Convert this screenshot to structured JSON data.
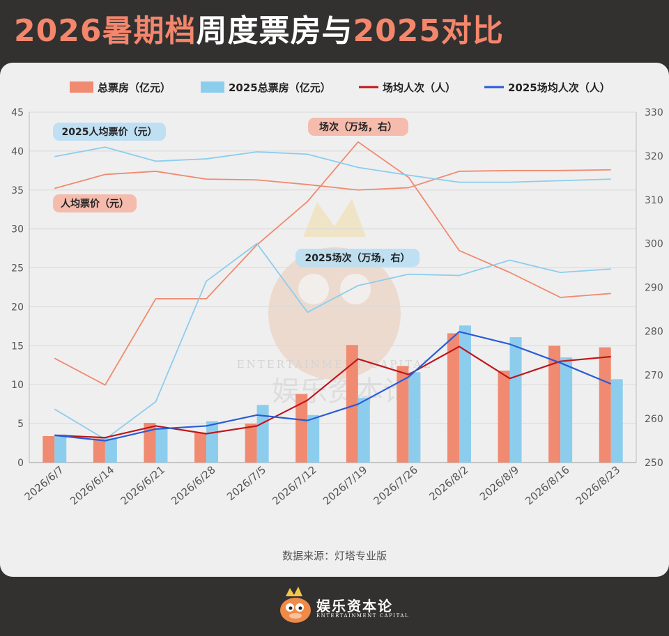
{
  "header": {
    "title_part1": "2026暑期档",
    "title_part2": "周度票房与",
    "title_part3": "2025对比"
  },
  "colors": {
    "bar_2026": "#f08a70",
    "bar_2025": "#8ccdee",
    "line_2026_attendance": "#c0161b",
    "line_2025_attendance": "#2a5bd7",
    "line_2026_price": "#f08a70",
    "line_2025_price": "#8ccdee",
    "annot_red_bg": "#f5b5a4",
    "annot_blue_bg": "#b9def2"
  },
  "chart_data": {
    "type": "bar",
    "categories": [
      "2026/6/7",
      "2026/6/14",
      "2026/6/21",
      "2026/6/28",
      "2026/7/5",
      "2026/7/12",
      "2026/7/19",
      "2026/7/26",
      "2026/8/2",
      "2026/8/9",
      "2026/8/16",
      "2026/8/23"
    ],
    "left_axis": {
      "min": 0,
      "max": 45,
      "ticks": [
        0,
        5,
        10,
        15,
        20,
        25,
        30,
        35,
        40,
        45
      ]
    },
    "right_axis": {
      "min": 250,
      "max": 330,
      "ticks": [
        250,
        260,
        270,
        280,
        290,
        300,
        310,
        320,
        330
      ]
    },
    "series": [
      {
        "name": "总票房（亿元）",
        "kind": "bar",
        "axis": "left",
        "values": [
          3.4,
          3.1,
          5.1,
          3.8,
          5.0,
          8.8,
          15.1,
          12.4,
          16.6,
          11.8,
          15.0,
          14.8
        ]
      },
      {
        "name": "2025总票房（亿元）",
        "kind": "bar",
        "axis": "left",
        "values": [
          3.6,
          3.1,
          4.5,
          5.3,
          7.4,
          6.1,
          8.3,
          11.6,
          17.6,
          16.1,
          13.5,
          10.7
        ]
      },
      {
        "name": "场均人次（人）",
        "kind": "line",
        "axis": "left",
        "values": [
          3.5,
          3.2,
          4.7,
          3.7,
          4.7,
          8.0,
          13.3,
          11.3,
          14.9,
          10.8,
          13.0,
          13.6
        ]
      },
      {
        "name": "2025场均人次（人）",
        "kind": "line",
        "axis": "left",
        "values": [
          3.5,
          2.8,
          4.3,
          4.7,
          6.1,
          5.4,
          7.5,
          11.0,
          16.8,
          15.2,
          12.8,
          10.1
        ]
      },
      {
        "name": "",
        "kind": "line",
        "axis": "left",
        "values": [
          35.2,
          37.0,
          37.4,
          36.4,
          36.3,
          35.7,
          35.0,
          35.3,
          37.4,
          37.5,
          37.5,
          37.6
        ]
      },
      {
        "name": "",
        "kind": "line",
        "axis": "left",
        "values": [
          39.3,
          40.5,
          38.7,
          39.0,
          39.9,
          39.6,
          37.9,
          36.9,
          36.0,
          36.0,
          36.2,
          36.4
        ]
      },
      {
        "name": "",
        "kind": "line",
        "axis": "right",
        "values": [
          273.8,
          267.7,
          287.4,
          287.4,
          299.7,
          309.6,
          323.2,
          315.1,
          298.4,
          293.4,
          287.7,
          288.6
        ]
      },
      {
        "name": "",
        "kind": "line",
        "axis": "right",
        "values": [
          262.2,
          255.3,
          263.9,
          291.4,
          300.0,
          284.3,
          290.4,
          293.0,
          292.7,
          296.2,
          293.4,
          294.2
        ]
      }
    ],
    "annotations": [
      {
        "text": "2025人均票价（元）",
        "style": "blue"
      },
      {
        "text": "场次（万场，右）",
        "style": "red"
      },
      {
        "text": "人均票价（元）",
        "style": "red"
      },
      {
        "text": "2025场次（万场，右）",
        "style": "blue"
      }
    ],
    "grid": true,
    "legend_position": "top"
  },
  "source": "数据来源：灯塔专业版",
  "footer": {
    "brand": "娱乐资本论",
    "brand_sub": "ENTERTAINMENT CAPITAL",
    "watermark_text": "ENTERTAINMENT CAPITAL",
    "watermark_cn": "娱乐资本论"
  }
}
